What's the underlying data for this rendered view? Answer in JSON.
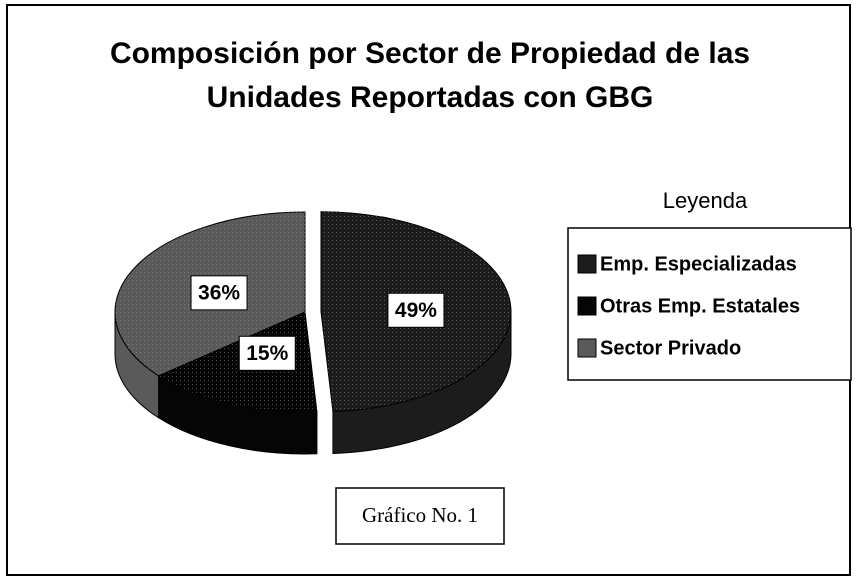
{
  "chart_data": {
    "type": "pie",
    "title": "Composición por Sector de Propiedad de las Unidades Reportadas con GBG",
    "categories": [
      "Emp. Especializadas",
      "Otras Emp. Estatales",
      "Sector Privado"
    ],
    "values": [
      49,
      15,
      36
    ],
    "value_labels": [
      "49%",
      "15%",
      "36%"
    ],
    "colors": [
      "#1c1c1c",
      "#050505",
      "#5a5a5a"
    ],
    "legend_title": "Leyenda",
    "legend": "right",
    "annotation": "Gráfico No. 1"
  }
}
